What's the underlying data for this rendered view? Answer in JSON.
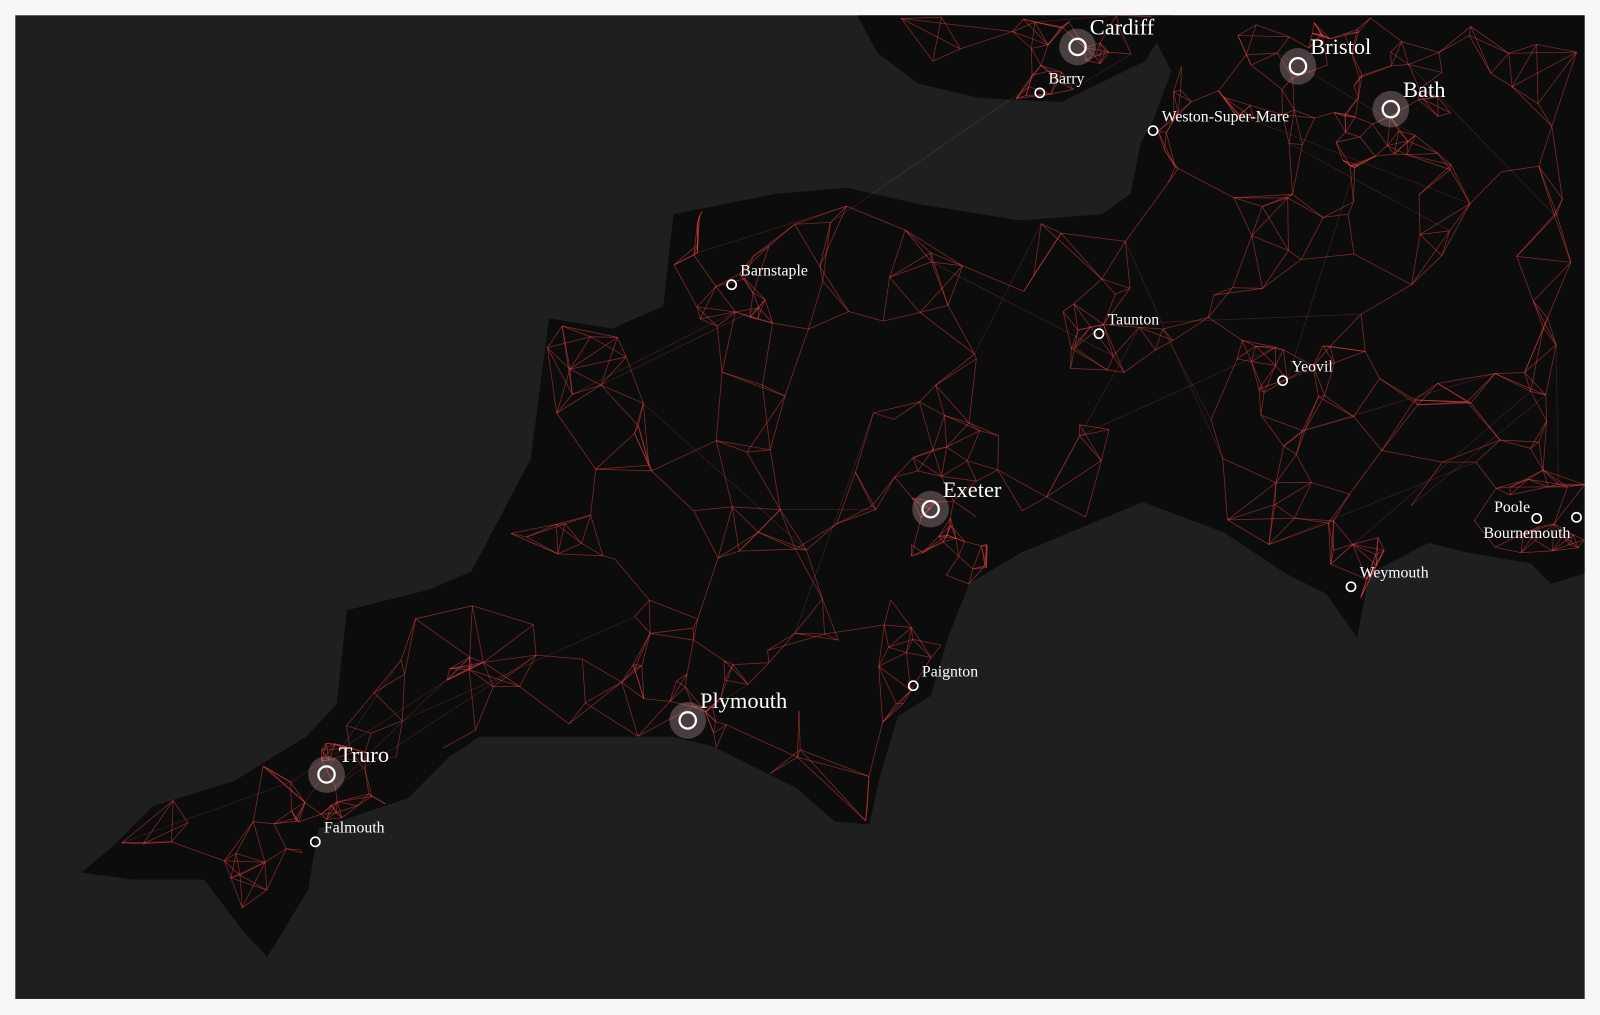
{
  "cities": [
    "Cardiff",
    "Barry",
    "Bristol",
    "Bath",
    "Weston-Super-Mare",
    "Barnstaple",
    "Taunton",
    "Yeovil",
    "Exeter",
    "Poole",
    "Bournemouth",
    "Weymouth",
    "Paignton",
    "Plymouth",
    "Truro",
    "Falmouth"
  ]
}
